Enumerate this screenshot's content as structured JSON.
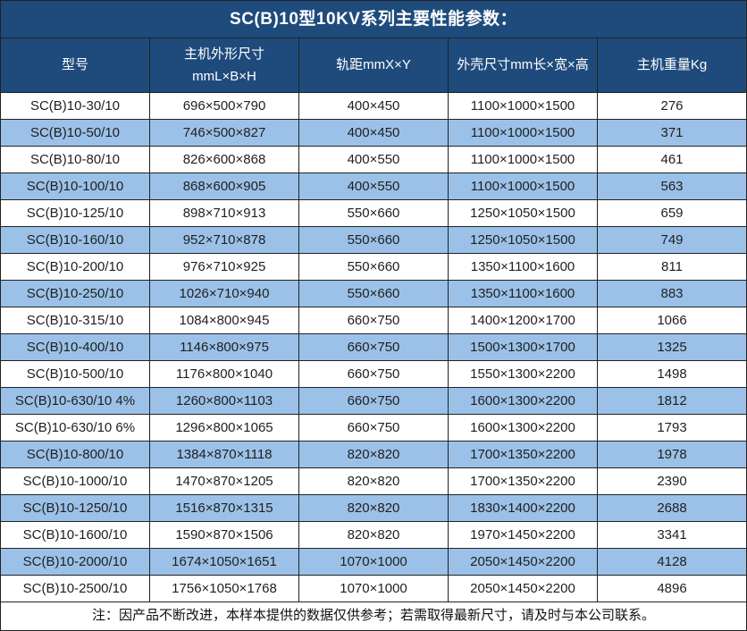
{
  "title": "SC(B)10型10KV系列主要性能参数：",
  "note": "注：因产品不断改进，本样本提供的数据仅供参考；若需取得最新尺寸，请及时与本公司联系。",
  "colors": {
    "header_bg": "#1F4B7C",
    "row_alt_bg": "#9BC1E8",
    "row_bg": "#FFFFFF",
    "border": "#222222",
    "header_text": "#FFFFFF",
    "cell_text": "#1F1F1F"
  },
  "table": {
    "columns": [
      {
        "lines": [
          "型号"
        ]
      },
      {
        "lines": [
          "主机外形尺寸",
          "mmL×B×H"
        ]
      },
      {
        "lines": [
          "轨距mmX×Y"
        ]
      },
      {
        "lines": [
          "外壳尺寸mm长×宽×高"
        ]
      },
      {
        "lines": [
          "主机重量Kg"
        ]
      }
    ],
    "rows": [
      [
        "SC(B)10-30/10",
        "696×500×790",
        "400×450",
        "1100×1000×1500",
        "276"
      ],
      [
        "SC(B)10-50/10",
        "746×500×827",
        "400×450",
        "1100×1000×1500",
        "371"
      ],
      [
        "SC(B)10-80/10",
        "826×600×868",
        "400×550",
        "1100×1000×1500",
        "461"
      ],
      [
        "SC(B)10-100/10",
        "868×600×905",
        "400×550",
        "1100×1000×1500",
        "563"
      ],
      [
        "SC(B)10-125/10",
        "898×710×913",
        "550×660",
        "1250×1050×1500",
        "659"
      ],
      [
        "SC(B)10-160/10",
        "952×710×878",
        "550×660",
        "1250×1050×1500",
        "749"
      ],
      [
        "SC(B)10-200/10",
        "976×710×925",
        "550×660",
        "1350×1100×1600",
        "811"
      ],
      [
        "SC(B)10-250/10",
        "1026×710×940",
        "550×660",
        "1350×1100×1600",
        "883"
      ],
      [
        "SC(B)10-315/10",
        "1084×800×945",
        "660×750",
        "1400×1200×1700",
        "1066"
      ],
      [
        "SC(B)10-400/10",
        "1146×800×975",
        "660×750",
        "1500×1300×1700",
        "1325"
      ],
      [
        "SC(B)10-500/10",
        "1176×800×1040",
        "660×750",
        "1550×1300×2200",
        "1498"
      ],
      [
        "SC(B)10-630/10 4%",
        "1260×800×1103",
        "660×750",
        "1600×1300×2200",
        "1812"
      ],
      [
        "SC(B)10-630/10 6%",
        "1296×800×1065",
        "660×750",
        "1600×1300×2200",
        "1793"
      ],
      [
        "SC(B)10-800/10",
        "1384×870×1118",
        "820×820",
        "1700×1350×2200",
        "1978"
      ],
      [
        "SC(B)10-1000/10",
        "1470×870×1205",
        "820×820",
        "1700×1350×2200",
        "2390"
      ],
      [
        "SC(B)10-1250/10",
        "1516×870×1315",
        "820×820",
        "1830×1400×2200",
        "2688"
      ],
      [
        "SC(B)10-1600/10",
        "1590×870×1506",
        "820×820",
        "1970×1450×2200",
        "3341"
      ],
      [
        "SC(B)10-2000/10",
        "1674×1050×1651",
        "1070×1000",
        "2050×1450×2200",
        "4128"
      ],
      [
        "SC(B)10-2500/10",
        "1756×1050×1768",
        "1070×1000",
        "2050×1450×2200",
        "4896"
      ]
    ]
  }
}
